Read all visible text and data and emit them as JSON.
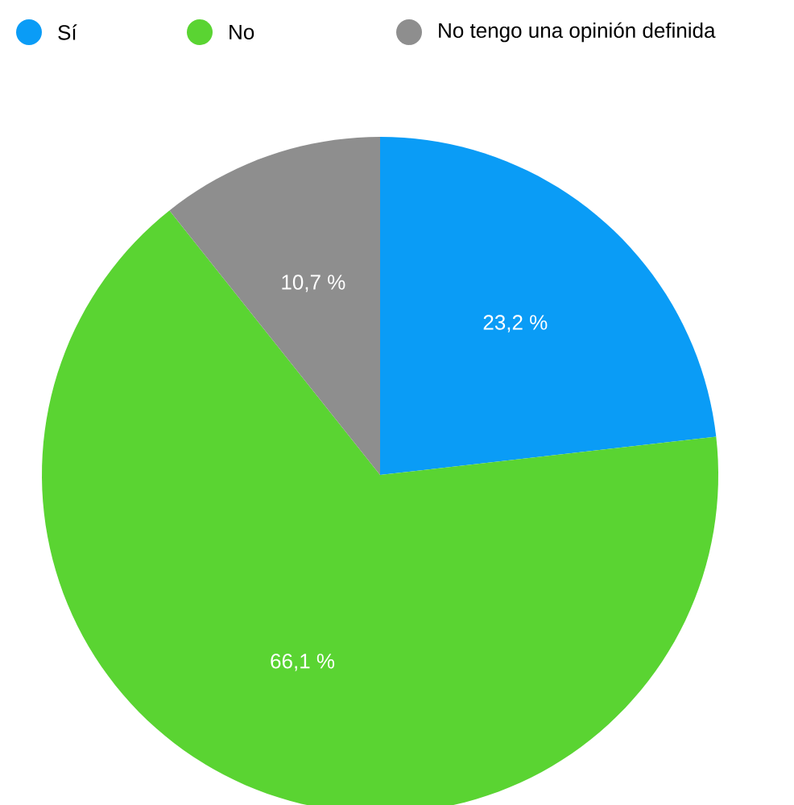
{
  "chart_data": {
    "type": "pie",
    "categories": [
      "Sí",
      "No",
      "No tengo una opinión definida"
    ],
    "values": [
      23.2,
      66.1,
      10.7
    ],
    "colors": [
      "#0a9cf6",
      "#5ad432",
      "#8e8e8e"
    ],
    "value_labels": [
      "23,2 %",
      "66,1 %",
      "10,7 %"
    ],
    "legend": "top left"
  }
}
